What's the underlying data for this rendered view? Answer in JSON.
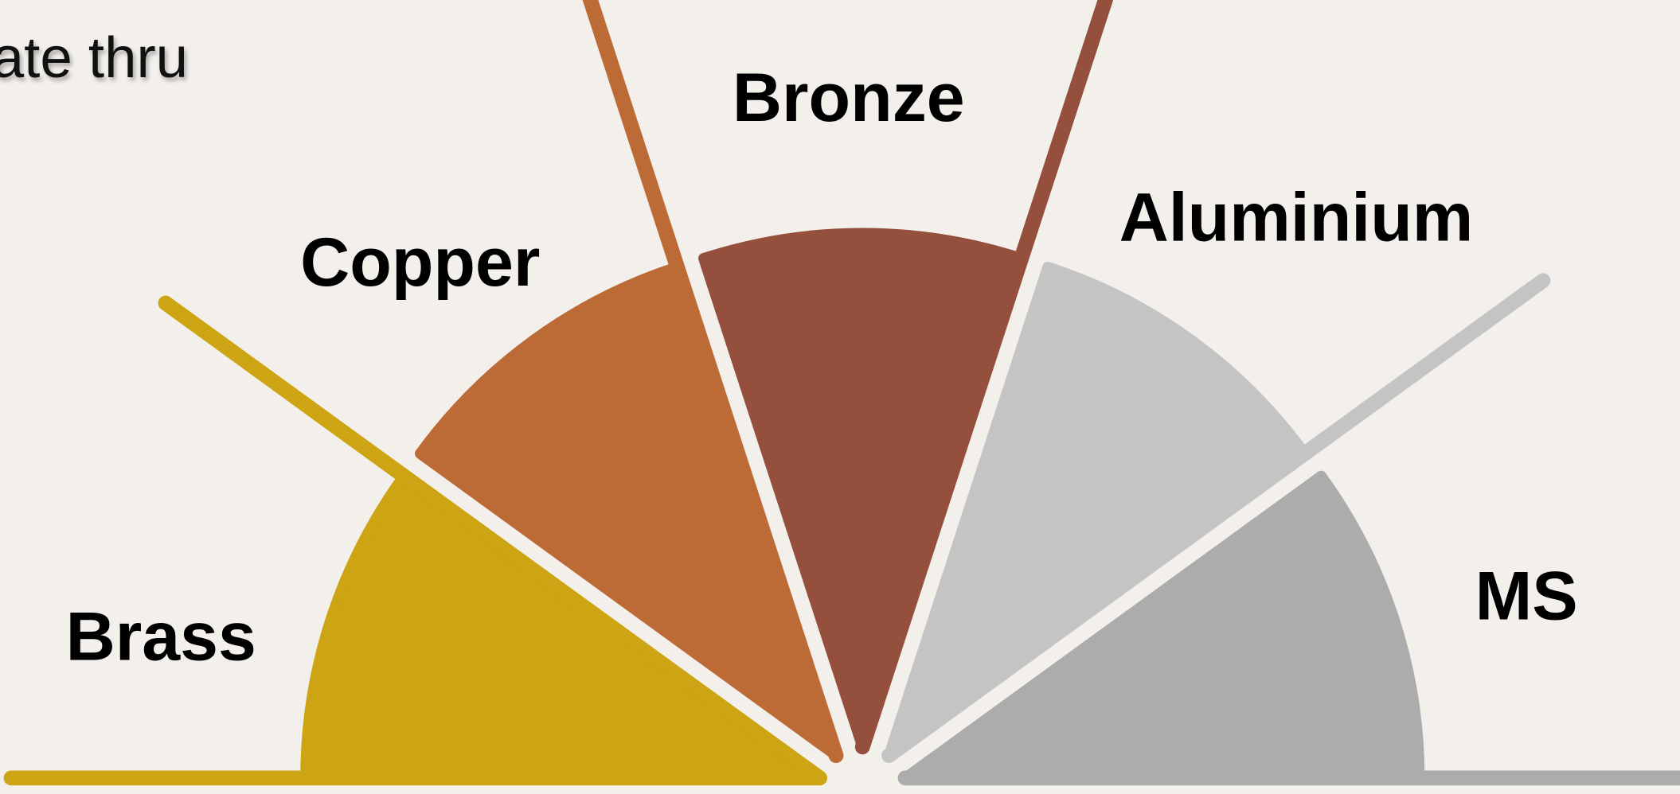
{
  "header": {
    "text": "ate thru"
  },
  "menu": {
    "items": [
      {
        "label": "Brass",
        "color": "#cda414"
      },
      {
        "label": "Copper",
        "color": "#bc6a36"
      },
      {
        "label": "Bronze",
        "color": "#95503d"
      },
      {
        "label": "Aluminium",
        "color": "#c4c4c4"
      },
      {
        "label": "MS",
        "color": "#acacac"
      }
    ]
  }
}
